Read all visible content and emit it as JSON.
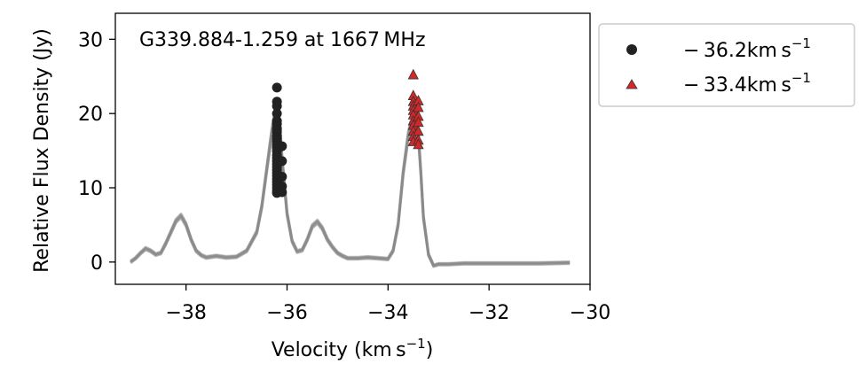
{
  "chart_data": {
    "type": "line",
    "title": "G339.884-1.259 at 1667 MHz",
    "xlabel_main": "Velocity (km s",
    "xlabel_sup": "−1",
    "xlabel_close": ")",
    "ylabel": "Relative Flux Density (Jy)",
    "xlim": [
      -39.4,
      -30.0
    ],
    "ylim": [
      -3.0,
      33.5
    ],
    "xticks": [
      -38,
      -36,
      -34,
      -32,
      -30
    ],
    "xtick_labels": [
      "−38",
      "−36",
      "−34",
      "−32",
      "−30"
    ],
    "yticks": [
      0,
      10,
      20,
      30
    ],
    "ytick_labels": [
      "0",
      "10",
      "20",
      "30"
    ],
    "grid": false,
    "legend_placement": "outside upper right",
    "legend": [
      {
        "marker": "circle",
        "color": "#222222",
        "label_main": "− 36.2km s",
        "label_sup": "−1"
      },
      {
        "marker": "triangle",
        "color": "#d62728",
        "label_main": "− 33.4km s",
        "label_sup": "−1"
      }
    ],
    "spectrum": {
      "name": "spectra",
      "color": "#888888",
      "x": [
        -39.1,
        -39.0,
        -38.9,
        -38.8,
        -38.7,
        -38.6,
        -38.5,
        -38.4,
        -38.3,
        -38.2,
        -38.1,
        -38.0,
        -37.9,
        -37.8,
        -37.7,
        -37.6,
        -37.5,
        -37.4,
        -37.2,
        -37.0,
        -36.8,
        -36.6,
        -36.5,
        -36.4,
        -36.3,
        -36.25,
        -36.2,
        -36.15,
        -36.1,
        -36.0,
        -35.9,
        -35.8,
        -35.7,
        -35.6,
        -35.5,
        -35.4,
        -35.3,
        -35.2,
        -35.1,
        -35.0,
        -34.9,
        -34.8,
        -34.6,
        -34.4,
        -34.2,
        -34.0,
        -33.9,
        -33.8,
        -33.7,
        -33.6,
        -33.55,
        -33.5,
        -33.45,
        -33.4,
        -33.35,
        -33.3,
        -33.2,
        -33.1,
        -33.0,
        -32.8,
        -32.5,
        -32.0,
        -31.5,
        -31.0,
        -30.4
      ],
      "y": [
        0.0,
        0.5,
        1.2,
        1.8,
        1.5,
        1.0,
        1.2,
        2.5,
        4.0,
        5.5,
        6.2,
        5.0,
        3.0,
        1.5,
        0.9,
        0.6,
        0.7,
        0.8,
        0.6,
        0.7,
        1.5,
        4.0,
        7.5,
        12.5,
        17.5,
        19.5,
        20.5,
        18.5,
        14.0,
        6.5,
        2.8,
        1.4,
        1.6,
        3.0,
        4.8,
        5.4,
        4.5,
        3.0,
        2.0,
        1.2,
        0.8,
        0.5,
        0.5,
        0.6,
        0.5,
        0.4,
        1.5,
        5.0,
        12.0,
        17.0,
        18.5,
        18.8,
        18.5,
        17.0,
        12.0,
        6.0,
        1.0,
        -0.5,
        -0.3,
        -0.3,
        -0.2,
        -0.2,
        -0.2,
        -0.2,
        -0.1
      ]
    },
    "series": [
      {
        "marker": "circle",
        "color": "#222222",
        "x": [
          -36.2,
          -36.2,
          -36.2,
          -36.2,
          -36.2,
          -36.2,
          -36.2,
          -36.2,
          -36.2,
          -36.2,
          -36.2,
          -36.2,
          -36.2,
          -36.2,
          -36.2,
          -36.2,
          -36.2,
          -36.2,
          -36.2,
          -36.2,
          -36.2,
          -36.2,
          -36.2,
          -36.2,
          -36.2,
          -36.2,
          -36.2,
          -36.2,
          -36.2,
          -36.2,
          -36.1,
          -36.1,
          -36.1,
          -36.1,
          -36.1
        ],
        "y": [
          23.5,
          21.6,
          21.0,
          20.0,
          19.0,
          18.6,
          18.0,
          17.5,
          17.0,
          16.6,
          16.2,
          15.8,
          15.3,
          14.9,
          14.4,
          14.0,
          13.6,
          13.2,
          12.8,
          12.4,
          12.0,
          11.6,
          11.2,
          10.8,
          10.4,
          10.0,
          9.6,
          9.3,
          17.8,
          15.5,
          15.6,
          13.6,
          11.5,
          10.2,
          9.4
        ]
      },
      {
        "marker": "triangle",
        "color": "#d62728",
        "x": [
          -33.5,
          -33.5,
          -33.5,
          -33.5,
          -33.5,
          -33.5,
          -33.5,
          -33.5,
          -33.5,
          -33.5,
          -33.5,
          -33.4,
          -33.4,
          -33.4,
          -33.4,
          -33.4,
          -33.4,
          -33.4
        ],
        "y": [
          25.2,
          22.4,
          21.6,
          21.0,
          20.4,
          19.8,
          19.0,
          18.4,
          17.6,
          16.9,
          16.2,
          21.7,
          20.8,
          19.6,
          18.8,
          17.6,
          16.4,
          15.8
        ]
      }
    ]
  }
}
